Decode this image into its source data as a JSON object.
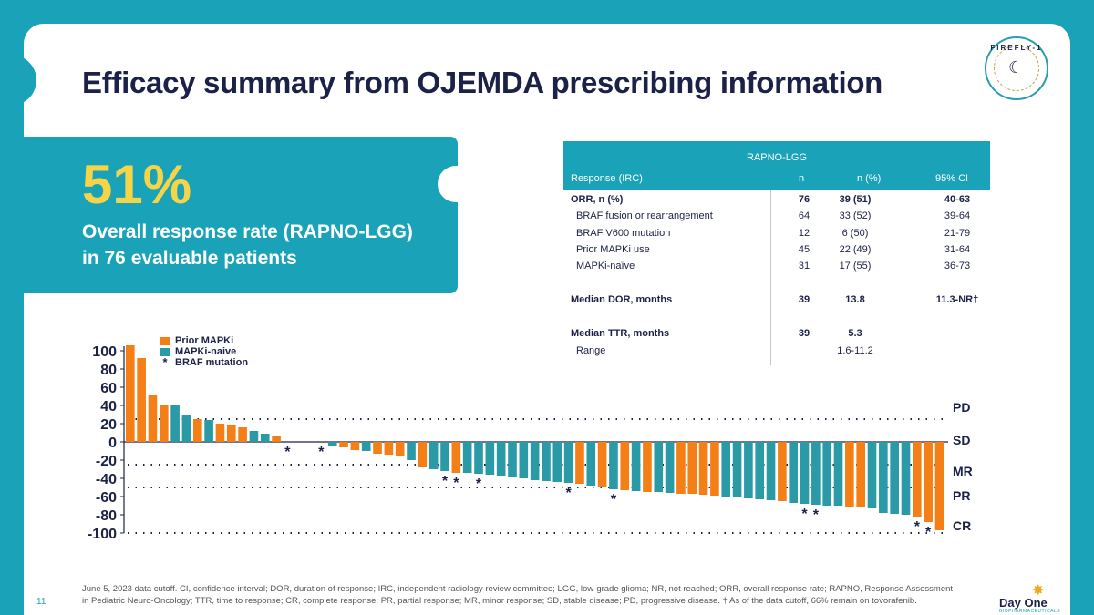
{
  "title": "Efficacy summary from OJEMDA prescribing information",
  "logo": {
    "text": "FIREFLY-1",
    "icon": "firefly-icon"
  },
  "callout": {
    "percent": "51%",
    "line1": "Overall response rate (RAPNO-LGG)",
    "line2": "in 76 evaluable patients"
  },
  "table": {
    "group_header": "RAPNO-LGG",
    "columns": [
      "Response (IRC)",
      "n",
      "n (%)",
      "95% CI"
    ],
    "rows": [
      {
        "label": "ORR, n (%)",
        "n": "76",
        "pct": "39 (51)",
        "ci": "40-63",
        "bold": true
      },
      {
        "label": "BRAF fusion or rearrangement",
        "n": "64",
        "pct": "33 (52)",
        "ci": "39-64"
      },
      {
        "label": "BRAF V600 mutation",
        "n": "12",
        "pct": "6 (50)",
        "ci": "21-79"
      },
      {
        "label": "Prior MAPKi use",
        "n": "45",
        "pct": "22 (49)",
        "ci": "31-64"
      },
      {
        "label": "MAPKi-naïve",
        "n": "31",
        "pct": "17 (55)",
        "ci": "36-73"
      },
      {
        "label": "Median DOR, months",
        "n": "39",
        "pct": "13.8",
        "ci": "11.3-NR†",
        "bold": true
      },
      {
        "label": "Median TTR, months",
        "n": "39",
        "pct": "5.3",
        "ci": "",
        "bold": true
      },
      {
        "label": "Range",
        "n": "",
        "pct": "1.6-11.2",
        "ci": ""
      }
    ]
  },
  "chart_data": {
    "type": "bar",
    "title": "",
    "xlabel": "",
    "ylabel": "",
    "ylim": [
      -100,
      100
    ],
    "yticks": [
      "100",
      "80",
      "60",
      "40",
      "20",
      "0",
      "-20",
      "-40",
      "-60",
      "-80",
      "-100"
    ],
    "legend": [
      {
        "label": "Prior MAPKi",
        "color": "#f57f17"
      },
      {
        "label": "MAPKi-naive",
        "color": "#2a9ba6"
      },
      {
        "label": "BRAF mutation",
        "marker": "*"
      }
    ],
    "legend_position": "top-left",
    "thresholds": [
      {
        "value": 25,
        "label": "PD"
      },
      {
        "value": 0,
        "label": "SD"
      },
      {
        "value": -25,
        "label": "MR"
      },
      {
        "value": -50,
        "label": "PR"
      },
      {
        "value": -100,
        "label": "CR"
      }
    ],
    "bars": [
      {
        "v": 106,
        "g": "prior"
      },
      {
        "v": 92,
        "g": "prior"
      },
      {
        "v": 52,
        "g": "prior"
      },
      {
        "v": 41,
        "g": "prior"
      },
      {
        "v": 40,
        "g": "naive"
      },
      {
        "v": 30,
        "g": "naive"
      },
      {
        "v": 25,
        "g": "prior"
      },
      {
        "v": 24,
        "g": "naive"
      },
      {
        "v": 20,
        "g": "prior"
      },
      {
        "v": 18,
        "g": "prior"
      },
      {
        "v": 16,
        "g": "prior"
      },
      {
        "v": 12,
        "g": "naive"
      },
      {
        "v": 9,
        "g": "naive"
      },
      {
        "v": 6,
        "g": "prior"
      },
      {
        "v": 0,
        "g": "naive",
        "braf": true
      },
      {
        "v": 0,
        "g": "naive"
      },
      {
        "v": 0,
        "g": "naive"
      },
      {
        "v": 0,
        "g": "naive",
        "braf": true
      },
      {
        "v": -5,
        "g": "naive"
      },
      {
        "v": -6,
        "g": "prior"
      },
      {
        "v": -9,
        "g": "prior"
      },
      {
        "v": -10,
        "g": "naive"
      },
      {
        "v": -13,
        "g": "prior"
      },
      {
        "v": -14,
        "g": "prior"
      },
      {
        "v": -15,
        "g": "prior"
      },
      {
        "v": -20,
        "g": "naive"
      },
      {
        "v": -28,
        "g": "prior"
      },
      {
        "v": -30,
        "g": "naive"
      },
      {
        "v": -32,
        "g": "naive",
        "braf": true
      },
      {
        "v": -34,
        "g": "prior",
        "braf": true
      },
      {
        "v": -34,
        "g": "naive"
      },
      {
        "v": -35,
        "g": "naive",
        "braf": true
      },
      {
        "v": -36,
        "g": "naive"
      },
      {
        "v": -37,
        "g": "naive"
      },
      {
        "v": -38,
        "g": "naive"
      },
      {
        "v": -40,
        "g": "naive"
      },
      {
        "v": -42,
        "g": "naive"
      },
      {
        "v": -43,
        "g": "naive"
      },
      {
        "v": -44,
        "g": "naive"
      },
      {
        "v": -45,
        "g": "naive",
        "braf": true
      },
      {
        "v": -46,
        "g": "prior"
      },
      {
        "v": -48,
        "g": "naive"
      },
      {
        "v": -50,
        "g": "prior"
      },
      {
        "v": -52,
        "g": "naive",
        "braf": true
      },
      {
        "v": -53,
        "g": "prior"
      },
      {
        "v": -54,
        "g": "naive"
      },
      {
        "v": -55,
        "g": "prior"
      },
      {
        "v": -55,
        "g": "naive"
      },
      {
        "v": -56,
        "g": "naive"
      },
      {
        "v": -57,
        "g": "prior"
      },
      {
        "v": -57,
        "g": "prior"
      },
      {
        "v": -58,
        "g": "prior"
      },
      {
        "v": -59,
        "g": "prior"
      },
      {
        "v": -60,
        "g": "naive"
      },
      {
        "v": -61,
        "g": "naive"
      },
      {
        "v": -62,
        "g": "naive"
      },
      {
        "v": -63,
        "g": "naive"
      },
      {
        "v": -64,
        "g": "naive"
      },
      {
        "v": -65,
        "g": "prior"
      },
      {
        "v": -67,
        "g": "naive"
      },
      {
        "v": -68,
        "g": "naive",
        "braf": true
      },
      {
        "v": -69,
        "g": "naive",
        "braf": true
      },
      {
        "v": -70,
        "g": "naive"
      },
      {
        "v": -70,
        "g": "naive"
      },
      {
        "v": -71,
        "g": "prior"
      },
      {
        "v": -72,
        "g": "prior"
      },
      {
        "v": -73,
        "g": "naive"
      },
      {
        "v": -78,
        "g": "naive"
      },
      {
        "v": -79,
        "g": "naive"
      },
      {
        "v": -80,
        "g": "naive"
      },
      {
        "v": -82,
        "g": "prior",
        "braf": true
      },
      {
        "v": -88,
        "g": "prior",
        "braf": true
      },
      {
        "v": -97,
        "g": "prior"
      }
    ]
  },
  "footnote": {
    "line1": "June 5, 2023 data cutoff. CI, confidence interval; DOR, duration of response; IRC, independent radiology review committee; LGG, low-grade glioma; NR, not reached; ORR, overall response rate; RAPNO, Response Assessment",
    "line2": "in Pediatric Neuro-Oncology; TTR, time to response; CR, complete response; PR, partial response; MR, minor response; SD, stable disease; PD, progressive disease. † As of the data cutoff, 66% remain on tovorafenib."
  },
  "page_number": "11",
  "brand": {
    "name": "Day One",
    "sub": "BIOPHARMACEUTICALS",
    "icon": "sun-icon"
  }
}
